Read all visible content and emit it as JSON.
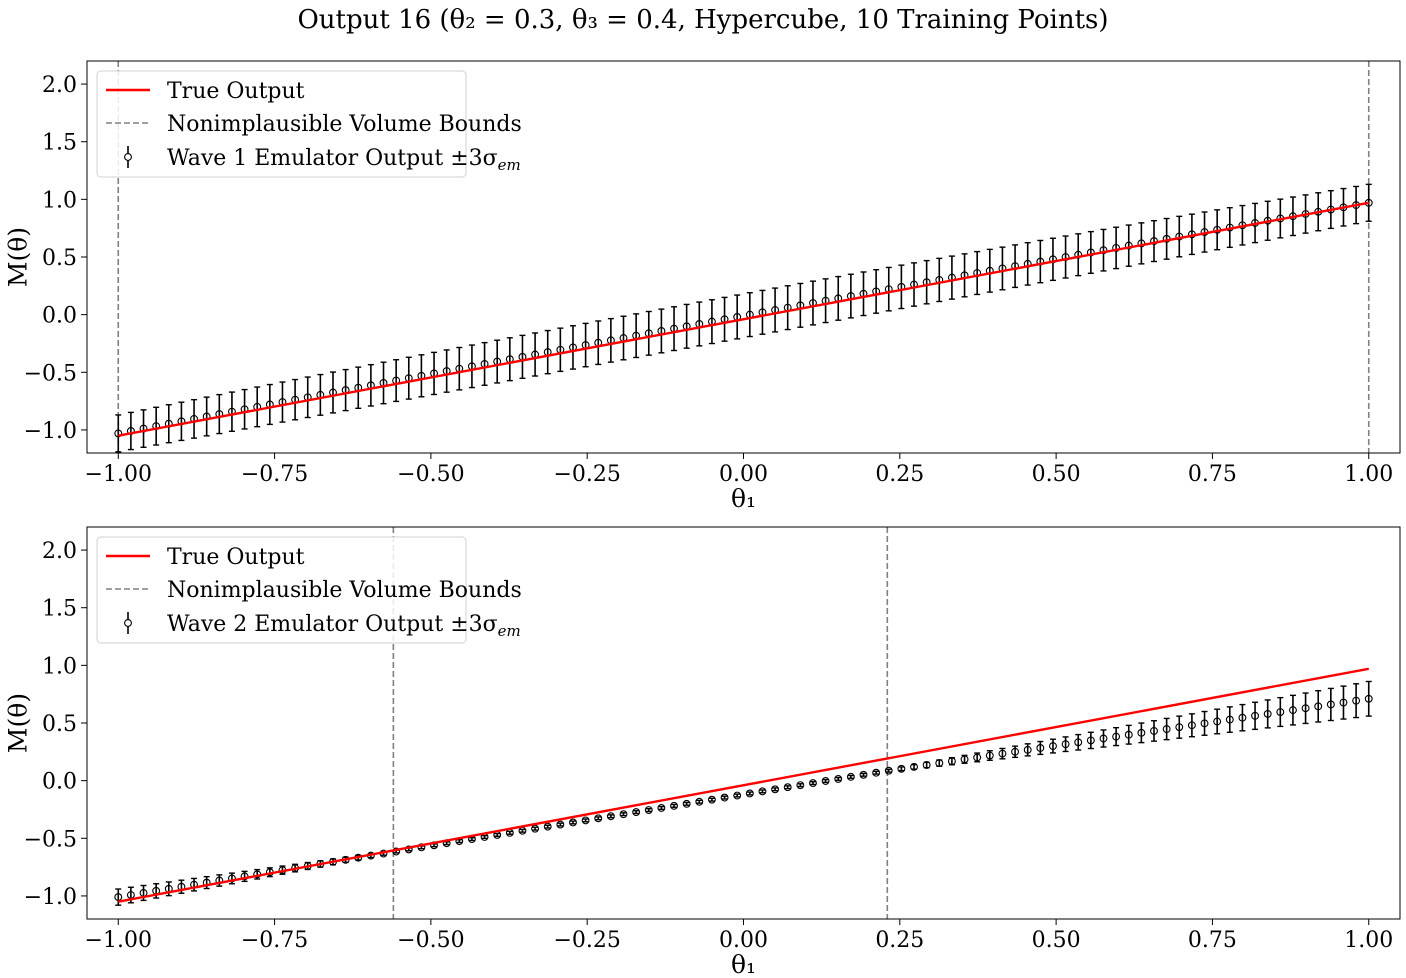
{
  "figure": {
    "title": "Output 16 (θ₂ = 0.3, θ₃ = 0.4, Hypercube, 10 Training Points)"
  },
  "chart_data": [
    {
      "type": "scatter",
      "panel": "top",
      "xlabel": "θ₁",
      "ylabel": "M(θ)",
      "xlim": [
        -1.05,
        1.05
      ],
      "ylim": [
        -1.2,
        2.2
      ],
      "xticks": [
        -1.0,
        -0.75,
        -0.5,
        -0.25,
        0.0,
        0.25,
        0.5,
        0.75,
        1.0
      ],
      "xtick_labels": [
        "−1.00",
        "−0.75",
        "−0.50",
        "−0.25",
        "0.00",
        "0.25",
        "0.50",
        "0.75",
        "1.00"
      ],
      "yticks": [
        -1.0,
        -0.5,
        0.0,
        0.5,
        1.0,
        1.5,
        2.0
      ],
      "ytick_labels": [
        "−1.0",
        "−0.5",
        "0.0",
        "0.5",
        "1.0",
        "1.5",
        "2.0"
      ],
      "grid": false,
      "legend_position": "top-left",
      "true_output": {
        "name": "True Output",
        "color": "#ff0000",
        "x": [
          -1.0,
          1.0
        ],
        "y": [
          -1.05,
          0.97
        ]
      },
      "bounds": {
        "name": "Nonimplausible Volume Bounds",
        "color": "#808080",
        "x": [
          -1.0,
          1.0
        ]
      },
      "emulator": {
        "name": "Wave 1 Emulator Output ±3σ",
        "name_sub": "em",
        "color": "#000000",
        "n_points": 100,
        "x_range": [
          -1.0,
          1.0
        ],
        "mean_at_x_min": -1.03,
        "mean_at_x_max": 0.97,
        "bump_at_center": 0.02,
        "err_at_ends": 0.16,
        "err_at_center": 0.19
      }
    },
    {
      "type": "scatter",
      "panel": "bottom",
      "xlabel": "θ₁",
      "ylabel": "M(θ)",
      "xlim": [
        -1.05,
        1.05
      ],
      "ylim": [
        -1.2,
        2.2
      ],
      "xticks": [
        -1.0,
        -0.75,
        -0.5,
        -0.25,
        0.0,
        0.25,
        0.5,
        0.75,
        1.0
      ],
      "xtick_labels": [
        "−1.00",
        "−0.75",
        "−0.50",
        "−0.25",
        "0.00",
        "0.25",
        "0.50",
        "0.75",
        "1.00"
      ],
      "yticks": [
        -1.0,
        -0.5,
        0.0,
        0.5,
        1.0,
        1.5,
        2.0
      ],
      "ytick_labels": [
        "−1.0",
        "−0.5",
        "0.0",
        "0.5",
        "1.0",
        "1.5",
        "2.0"
      ],
      "grid": false,
      "legend_position": "top-left",
      "true_output": {
        "name": "True Output",
        "color": "#ff0000",
        "x": [
          -1.0,
          1.0
        ],
        "y": [
          -1.05,
          0.97
        ]
      },
      "bounds": {
        "name": "Nonimplausible Volume Bounds",
        "color": "#808080",
        "x": [
          -0.56,
          0.23
        ]
      },
      "emulator": {
        "name": "Wave 2 Emulator Output ±3σ",
        "name_sub": "em",
        "color": "#000000",
        "n_points": 100,
        "x_range": [
          -1.0,
          1.0
        ],
        "mean_at_x_min": -1.01,
        "mean_at_x_max": 0.77,
        "good_region": [
          -0.56,
          0.23
        ],
        "err_min": 0.012,
        "err_at_x_min": 0.07,
        "err_at_x_max": 0.15
      }
    }
  ]
}
